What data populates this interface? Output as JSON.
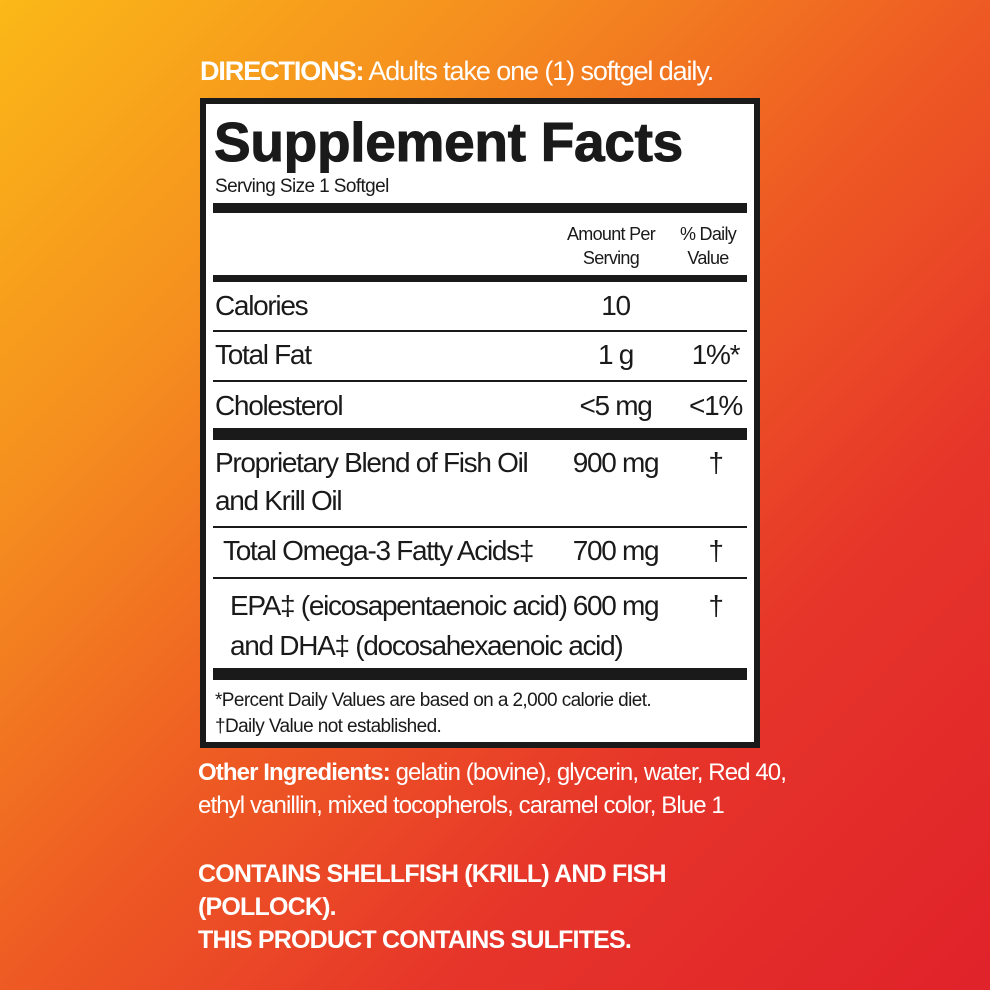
{
  "directions": {
    "label": "DIRECTIONS:",
    "text": " Adults take one (1) softgel daily."
  },
  "facts": {
    "title": "Supplement Facts",
    "serving_size": "Serving Size 1 Softgel",
    "col_amount": [
      "Amount Per",
      "Serving"
    ],
    "col_dv": [
      "% Daily",
      "Value"
    ],
    "rows": [
      {
        "name": "Calories",
        "amount": "10",
        "dv": ""
      },
      {
        "name": "Total Fat",
        "amount": "1 g",
        "dv": "1%*"
      },
      {
        "name": "Cholesterol",
        "amount": "<5 mg",
        "dv": "<1%"
      },
      {
        "name": "Proprietary Blend of Fish Oil",
        "name2": "and Krill Oil",
        "amount": "900 mg",
        "dv": "†"
      },
      {
        "name": "Total Omega-3 Fatty Acids‡",
        "amount": "700 mg",
        "dv": "†"
      },
      {
        "name": "EPA‡ (eicosapentaenoic acid)",
        "name2": "and DHA‡ (docosahexaenoic acid)",
        "amount": "600 mg",
        "dv": "†"
      }
    ],
    "footnotes": [
      "*Percent Daily Values are based on a 2,000 calorie diet.",
      "†Daily Value not established."
    ]
  },
  "other_ingredients": {
    "label": "Other Ingredients:",
    "text": " gelatin (bovine), glycerin, water, Red 40, ethyl vanillin, mixed tocopherols, caramel color,  Blue 1"
  },
  "warnings": [
    "CONTAINS SHELLFISH (KRILL) AND FISH (POLLOCK).",
    "THIS PRODUCT CONTAINS SULFITES."
  ],
  "colors": {
    "gradient_top_left": "#fbb817",
    "gradient_bottom_right": "#e0222a",
    "label_ink": "#1a1a1a"
  }
}
